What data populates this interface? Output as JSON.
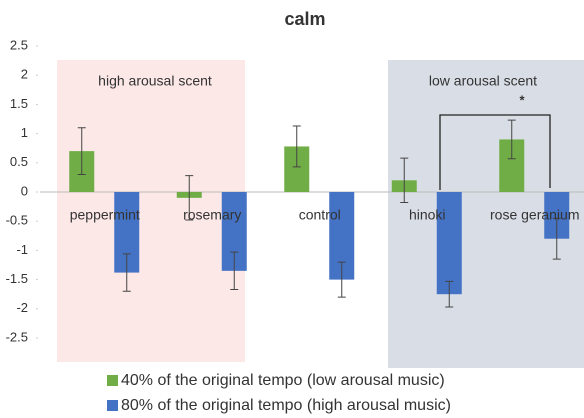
{
  "chart_data": {
    "type": "bar",
    "title": "calm",
    "categories": [
      "peppermint",
      "rosemary",
      "control",
      "hinoki",
      "rose geranium"
    ],
    "series": [
      {
        "name": "40% of the original tempo (low arousal music)",
        "color": "#70ad47",
        "values": [
          0.7,
          -0.1,
          0.78,
          0.2,
          0.9
        ],
        "errors": [
          0.4,
          0.38,
          0.35,
          0.38,
          0.33
        ]
      },
      {
        "name": "80% of the original tempo (high arousal music)",
        "color": "#4472c4",
        "values": [
          -1.38,
          -1.35,
          -1.5,
          -1.75,
          -0.8
        ],
        "errors": [
          0.32,
          0.32,
          0.3,
          0.22,
          0.35
        ]
      }
    ],
    "ylim": [
      -2.5,
      2.5
    ],
    "yticks": [
      2.5,
      2,
      1.5,
      1,
      0.5,
      0,
      -0.5,
      -1,
      -1.5,
      -2,
      -2.5
    ],
    "annotations": [
      "high arousal scent",
      "low arousal scent",
      "*"
    ],
    "legend": "bottom"
  }
}
